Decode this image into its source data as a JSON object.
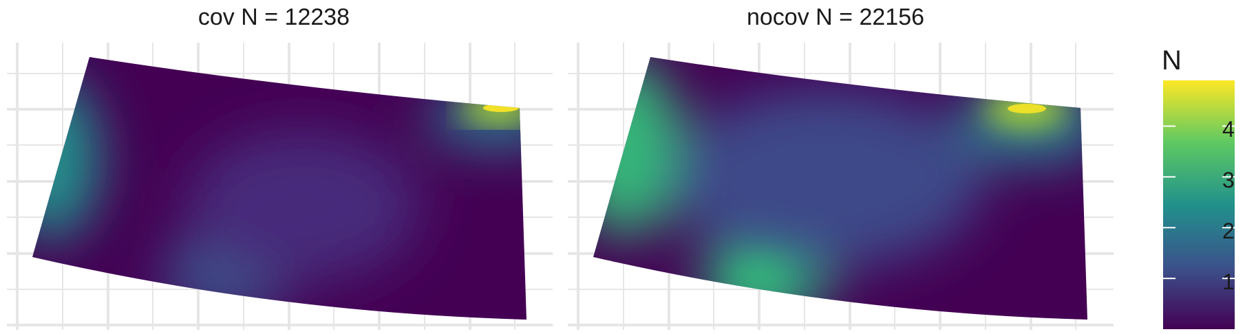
{
  "chart_data": [
    {
      "type": "heatmap",
      "title": "cov N = 12238",
      "xlabel": "",
      "ylabel": "",
      "fill_variable": "N",
      "color_scale": "viridis",
      "hotspots": [
        {
          "location": "upper-right corner",
          "value": 4.8
        },
        {
          "location": "left edge",
          "value": 2.6
        },
        {
          "location": "bottom center",
          "value": 1.3
        },
        {
          "location": "background",
          "value": 0.2
        }
      ]
    },
    {
      "type": "heatmap",
      "title": "nocov N = 22156",
      "xlabel": "",
      "ylabel": "",
      "fill_variable": "N",
      "color_scale": "viridis",
      "hotspots": [
        {
          "location": "upper-right corner",
          "value": 4.8
        },
        {
          "location": "left edge",
          "value": 3.0
        },
        {
          "location": "bottom center",
          "value": 2.6
        },
        {
          "location": "background",
          "value": 0.3
        }
      ]
    }
  ],
  "legend": {
    "title": "N",
    "ticks": [
      "1",
      "2",
      "3",
      "4"
    ],
    "tick_values": [
      1,
      2,
      3,
      4
    ],
    "range": [
      0,
      4.9
    ],
    "colors": [
      "#440154",
      "#3b528b",
      "#21918c",
      "#5ec962",
      "#fde725"
    ]
  }
}
